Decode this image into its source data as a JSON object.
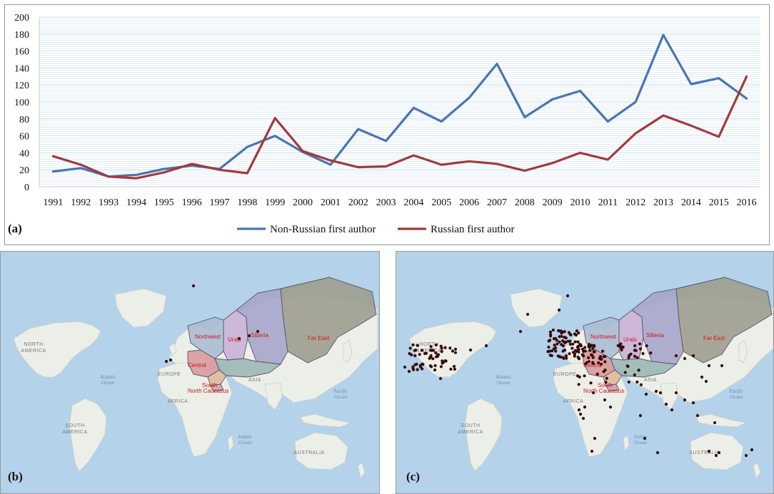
{
  "chart_data": {
    "type": "line",
    "categories": [
      "1991",
      "1992",
      "1993",
      "1994",
      "1995",
      "1996",
      "1997",
      "1998",
      "1999",
      "2000",
      "2001",
      "2002",
      "2003",
      "2004",
      "2005",
      "2006",
      "2007",
      "2008",
      "2009",
      "2010",
      "2011",
      "2012",
      "2013",
      "2014",
      "2015",
      "2016"
    ],
    "series": [
      {
        "name": "Non-Russian first author",
        "color": "#4a74b4",
        "values": [
          18,
          22,
          12,
          14,
          21,
          25,
          21,
          47,
          60,
          41,
          26,
          68,
          54,
          93,
          77,
          105,
          145,
          82,
          103,
          113,
          77,
          100,
          179,
          121,
          128,
          104
        ]
      },
      {
        "name": "Russian first author",
        "color": "#a33a3a",
        "values": [
          36,
          26,
          12,
          10,
          17,
          27,
          20,
          16,
          81,
          42,
          31,
          23,
          24,
          37,
          26,
          30,
          27,
          19,
          28,
          40,
          32,
          63,
          84,
          72,
          59,
          130
        ]
      }
    ],
    "ylim": [
      0,
      200
    ],
    "yticks": [
      0,
      20,
      40,
      60,
      80,
      100,
      120,
      140,
      160,
      180,
      200
    ],
    "grid": true,
    "legend": "bottom",
    "xlabel": "",
    "ylabel": "",
    "title": ""
  },
  "panels": {
    "a": {
      "label": "(a)"
    },
    "b": {
      "label": "(b)"
    },
    "c": {
      "label": "(c)"
    }
  },
  "maps": {
    "continents": [
      "NORTH AMERICA",
      "SOUTH AMERICA",
      "EUROPE",
      "AFRICA",
      "ASIA",
      "AUSTRALIA"
    ],
    "oceans": [
      "Atlantic Ocean",
      "Indian Ocean",
      "Pacific Ocean"
    ],
    "regions": [
      "Northwest",
      "Urals",
      "Siberia",
      "Far East",
      "Central",
      "South",
      "North Caucasus"
    ],
    "region_colors": {
      "Northwest": "#a8bcd4",
      "Urals": "#c8b0d4",
      "Siberia": "#a6a4c8",
      "Far East": "#9c9c8c",
      "Central": "#d89a9a",
      "South": "#e0b898",
      "North Caucasus": "#cfa0a8",
      "Volga": "#9ab6b4"
    },
    "colors": {
      "ocean": "#b4d2ea",
      "land": "#eceee8",
      "dot": "#3a0a0a"
    }
  }
}
